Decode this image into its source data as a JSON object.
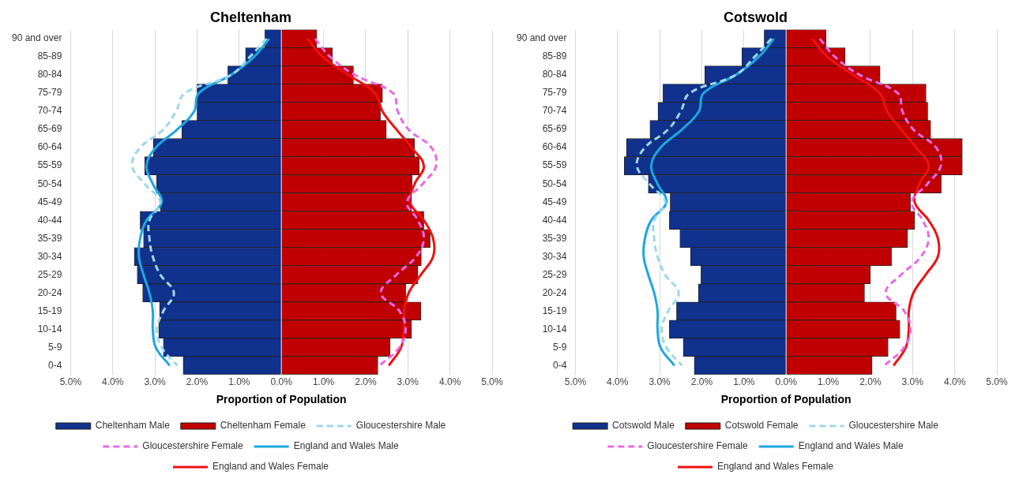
{
  "chart_data": [
    {
      "type": "bar",
      "orientation": "horizontal",
      "stacked": true,
      "title": "Cheltenham",
      "xlabel": "Proportion of Population",
      "categories": [
        "90 and over",
        "85-89",
        "80-84",
        "75-79",
        "70-74",
        "65-69",
        "60-64",
        "55-59",
        "50-54",
        "45-49",
        "40-44",
        "35-39",
        "30-34",
        "25-29",
        "20-24",
        "15-19",
        "10-14",
        "5-9",
        "0-4"
      ],
      "xlim": [
        -5,
        5
      ],
      "xticks": [
        {
          "value": -5,
          "label": "5.0%"
        },
        {
          "value": -4,
          "label": "4.0%"
        },
        {
          "value": -3,
          "label": "3.0%"
        },
        {
          "value": -2,
          "label": "2.0%"
        },
        {
          "value": -1,
          "label": "1.0%"
        },
        {
          "value": 0,
          "label": "0.0%"
        },
        {
          "value": 1,
          "label": "1.0%"
        },
        {
          "value": 2,
          "label": "2.0%"
        },
        {
          "value": 3,
          "label": "3.0%"
        },
        {
          "value": 4,
          "label": "4.0%"
        },
        {
          "value": 5,
          "label": "5.0%"
        }
      ],
      "grid": "x",
      "legend": "bottom",
      "marker": "none",
      "series": [
        {
          "name": "Cheltenham Male",
          "color": "#10318c",
          "values": [
            -0.39,
            -0.85,
            -1.27,
            -2.0,
            -2.0,
            -2.36,
            -3.04,
            -3.24,
            -2.96,
            -2.87,
            -3.35,
            -3.27,
            -3.49,
            -3.42,
            -3.29,
            -2.89,
            -2.91,
            -2.8,
            -2.33
          ]
        },
        {
          "name": "Cheltenham Female",
          "color": "#c00000",
          "values": [
            0.84,
            1.21,
            1.71,
            2.4,
            2.35,
            2.49,
            3.16,
            3.27,
            3.1,
            3.09,
            3.38,
            3.53,
            3.32,
            3.24,
            2.95,
            3.31,
            3.09,
            2.58,
            2.29
          ]
        },
        {
          "name": "Gloucestershire Male",
          "type": "line",
          "line_style": "dashed",
          "color": "#9dd8ea",
          "values": [
            -0.35,
            -0.75,
            -1.2,
            -2.29,
            -2.5,
            -2.8,
            -3.35,
            -3.54,
            -3.24,
            -2.87,
            -3.13,
            -3.13,
            -3.05,
            -2.87,
            -2.55,
            -2.8,
            -2.95,
            -2.84,
            -2.47
          ]
        },
        {
          "name": "Gloucestershire Female",
          "type": "line",
          "line_style": "dashed",
          "color": "#e86ae8",
          "values": [
            0.8,
            1.16,
            1.75,
            2.65,
            2.76,
            3.02,
            3.56,
            3.67,
            3.35,
            2.98,
            3.24,
            3.38,
            3.2,
            2.73,
            2.36,
            2.8,
            2.95,
            2.8,
            2.33
          ]
        },
        {
          "name": "England and Wales Male",
          "type": "line",
          "line_style": "solid",
          "color": "#1ea7e0",
          "values": [
            -0.29,
            -0.65,
            -1.2,
            -1.96,
            -2.07,
            -2.47,
            -2.98,
            -3.2,
            -3.05,
            -2.84,
            -3.2,
            -3.35,
            -3.38,
            -3.27,
            -3.13,
            -3.05,
            -3.05,
            -2.98,
            -2.65
          ]
        },
        {
          "name": "England and Wales Female",
          "type": "line",
          "line_style": "solid",
          "color": "#ee1111",
          "values": [
            0.62,
            0.98,
            1.6,
            2.22,
            2.4,
            2.73,
            3.09,
            3.38,
            3.16,
            3.05,
            3.38,
            3.6,
            3.6,
            3.31,
            3.02,
            2.91,
            2.91,
            2.84,
            2.55
          ]
        }
      ]
    },
    {
      "type": "bar",
      "orientation": "horizontal",
      "stacked": true,
      "title": "Cotswold",
      "xlabel": "Proportion of Population",
      "categories": [
        "90 and over",
        "85-89",
        "80-84",
        "75-79",
        "70-74",
        "65-69",
        "60-64",
        "55-59",
        "50-54",
        "45-49",
        "40-44",
        "35-39",
        "30-34",
        "25-29",
        "20-24",
        "15-19",
        "10-14",
        "5-9",
        "0-4"
      ],
      "xlim": [
        -5,
        5
      ],
      "xticks": [
        {
          "value": -5,
          "label": "5.0%"
        },
        {
          "value": -4,
          "label": "4.0%"
        },
        {
          "value": -3,
          "label": "3.0%"
        },
        {
          "value": -2,
          "label": "2.0%"
        },
        {
          "value": -1,
          "label": "1.0%"
        },
        {
          "value": 0,
          "label": "0.0%"
        },
        {
          "value": 1,
          "label": "1.0%"
        },
        {
          "value": 2,
          "label": "2.0%"
        },
        {
          "value": 3,
          "label": "3.0%"
        },
        {
          "value": 4,
          "label": "4.0%"
        },
        {
          "value": 5,
          "label": "5.0%"
        }
      ],
      "grid": "x",
      "legend": "bottom",
      "marker": "none",
      "series": [
        {
          "name": "Cotswold Male",
          "color": "#10318c",
          "values": [
            -0.52,
            -1.05,
            -1.93,
            -2.92,
            -3.04,
            -3.23,
            -3.79,
            -3.84,
            -3.27,
            -2.75,
            -2.77,
            -2.52,
            -2.27,
            -2.02,
            -2.08,
            -2.6,
            -2.77,
            -2.44,
            -2.18
          ]
        },
        {
          "name": "Cotswold Female",
          "color": "#c00000",
          "values": [
            0.95,
            1.4,
            2.23,
            3.32,
            3.36,
            3.43,
            4.18,
            4.18,
            3.68,
            2.95,
            3.05,
            2.88,
            2.5,
            2.0,
            1.86,
            2.61,
            2.7,
            2.42,
            2.04
          ]
        },
        {
          "name": "Gloucestershire Male",
          "type": "line",
          "line_style": "dashed",
          "color": "#9dd8ea",
          "values": [
            -0.35,
            -0.75,
            -1.2,
            -2.29,
            -2.5,
            -2.8,
            -3.35,
            -3.54,
            -3.24,
            -2.87,
            -3.13,
            -3.13,
            -3.05,
            -2.87,
            -2.55,
            -2.8,
            -2.95,
            -2.84,
            -2.47
          ]
        },
        {
          "name": "Gloucestershire Female",
          "type": "line",
          "line_style": "dashed",
          "color": "#e86ae8",
          "values": [
            0.8,
            1.16,
            1.75,
            2.65,
            2.76,
            3.02,
            3.56,
            3.67,
            3.35,
            2.98,
            3.24,
            3.38,
            3.2,
            2.73,
            2.36,
            2.8,
            2.95,
            2.8,
            2.33
          ]
        },
        {
          "name": "England and Wales Male",
          "type": "line",
          "line_style": "solid",
          "color": "#1ea7e0",
          "values": [
            -0.29,
            -0.65,
            -1.2,
            -1.96,
            -2.07,
            -2.47,
            -2.98,
            -3.2,
            -3.05,
            -2.84,
            -3.2,
            -3.35,
            -3.38,
            -3.27,
            -3.13,
            -3.05,
            -3.05,
            -2.98,
            -2.65
          ]
        },
        {
          "name": "England and Wales Female",
          "type": "line",
          "line_style": "solid",
          "color": "#ee1111",
          "values": [
            0.62,
            0.98,
            1.6,
            2.22,
            2.4,
            2.73,
            3.09,
            3.38,
            3.16,
            3.05,
            3.38,
            3.6,
            3.6,
            3.31,
            3.02,
            2.91,
            2.91,
            2.84,
            2.55
          ]
        }
      ]
    }
  ]
}
